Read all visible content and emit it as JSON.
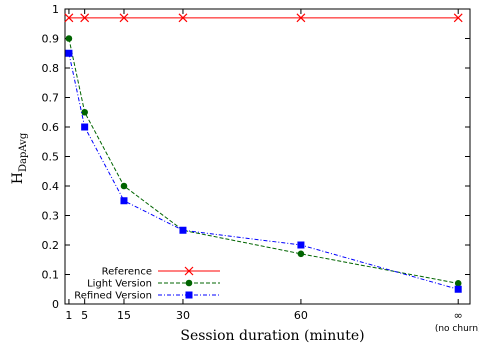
{
  "chart_data": {
    "type": "line",
    "title": "",
    "xlabel": "Session duration (minute)",
    "ylabel": {
      "main": "H",
      "subscript": "DapAvg"
    },
    "categories": [
      "1",
      "5",
      "15",
      "30",
      "60",
      "∞"
    ],
    "x_extra_label": "(no churn)",
    "ylim": [
      0,
      1
    ],
    "y_ticks": [
      "0",
      "0.1",
      "0.2",
      "0.3",
      "0.4",
      "0.5",
      "0.6",
      "0.7",
      "0.8",
      "0.9",
      "1"
    ],
    "grid": false,
    "legend_position": "bottom-left",
    "series": [
      {
        "name": "Reference",
        "values": [
          0.97,
          0.97,
          0.97,
          0.97,
          0.97,
          0.97
        ],
        "color": "#ff0000",
        "marker": "x",
        "style": "solid"
      },
      {
        "name": "Light Version",
        "values": [
          0.9,
          0.65,
          0.4,
          0.25,
          0.17,
          0.07
        ],
        "color": "#006400",
        "marker": "circle",
        "style": "dashed"
      },
      {
        "name": "Refined Version",
        "values": [
          0.85,
          0.6,
          0.35,
          0.25,
          0.2,
          0.05
        ],
        "color": "#0000ff",
        "marker": "square",
        "style": "dashdot"
      }
    ]
  }
}
